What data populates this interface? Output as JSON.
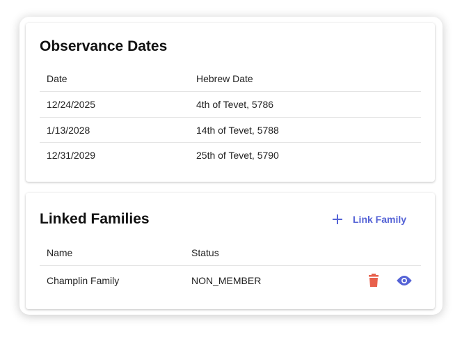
{
  "observance": {
    "title": "Observance Dates",
    "table": {
      "headers": [
        "Date",
        "Hebrew Date"
      ],
      "rows": [
        [
          "12/24/2025",
          "4th of Tevet, 5786"
        ],
        [
          "1/13/2028",
          "14th of Tevet, 5788"
        ],
        [
          "12/31/2029",
          "25th of Tevet, 5790"
        ]
      ]
    }
  },
  "linked": {
    "title": "Linked Families",
    "button": "Link Family",
    "table": {
      "headers": [
        "Name",
        "Status"
      ],
      "rows": [
        [
          "Champlin Family",
          "NON_MEMBER"
        ]
      ]
    }
  }
}
